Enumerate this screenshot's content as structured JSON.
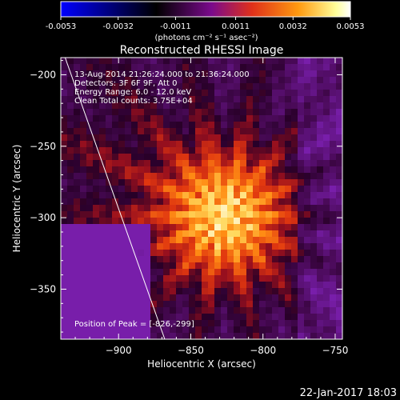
{
  "colorbar": {
    "ticks": [
      "-0.0053",
      "-0.0032",
      "-0.0011",
      "0.0011",
      "0.0032",
      "0.0053"
    ],
    "tick_values": [
      -0.0053,
      -0.0032,
      -0.0011,
      0.0011,
      0.0032,
      0.0053
    ],
    "range": [
      -0.0053,
      0.0053
    ],
    "unit_label": "(photons cm⁻² s⁻¹ asec⁻²)",
    "colormap": [
      "#0000ff",
      "#000000",
      "#7a0a8c",
      "#e0301a",
      "#ff9a10",
      "#ffff9a",
      "#ffffff"
    ]
  },
  "footer_timestamp": "22-Jan-2017 18:03",
  "chart_data": {
    "type": "heatmap",
    "title": "Reconstructed RHESSI Image",
    "xlabel": "Heliocentric X (arcsec)",
    "ylabel": "Heliocentric Y (arcsec)",
    "xlim": [
      -940,
      -745
    ],
    "ylim": [
      -385,
      -188
    ],
    "xticks": [
      -900,
      -850,
      -800,
      -750
    ],
    "xtick_labels": [
      "−900",
      "−850",
      "−800",
      "−750"
    ],
    "yticks": [
      -200,
      -250,
      -300,
      -350
    ],
    "ytick_labels": [
      "−200",
      "−250",
      "−300",
      "−350"
    ],
    "info_lines": [
      "13-Aug-2014 21:26:24.000 to 21:36:24.000",
      "Detectors: 3F 6F 9F, Att 0",
      "Energy Range: 6.0 - 12.0 keV",
      "Clean     Total counts: 3.75E+04"
    ],
    "peak_label": "Position of Peak = [-826,-299]",
    "peak": [
      -826,
      -299
    ],
    "limb_line": [
      [
        -937,
        -188
      ],
      [
        -868,
        -385
      ]
    ]
  }
}
